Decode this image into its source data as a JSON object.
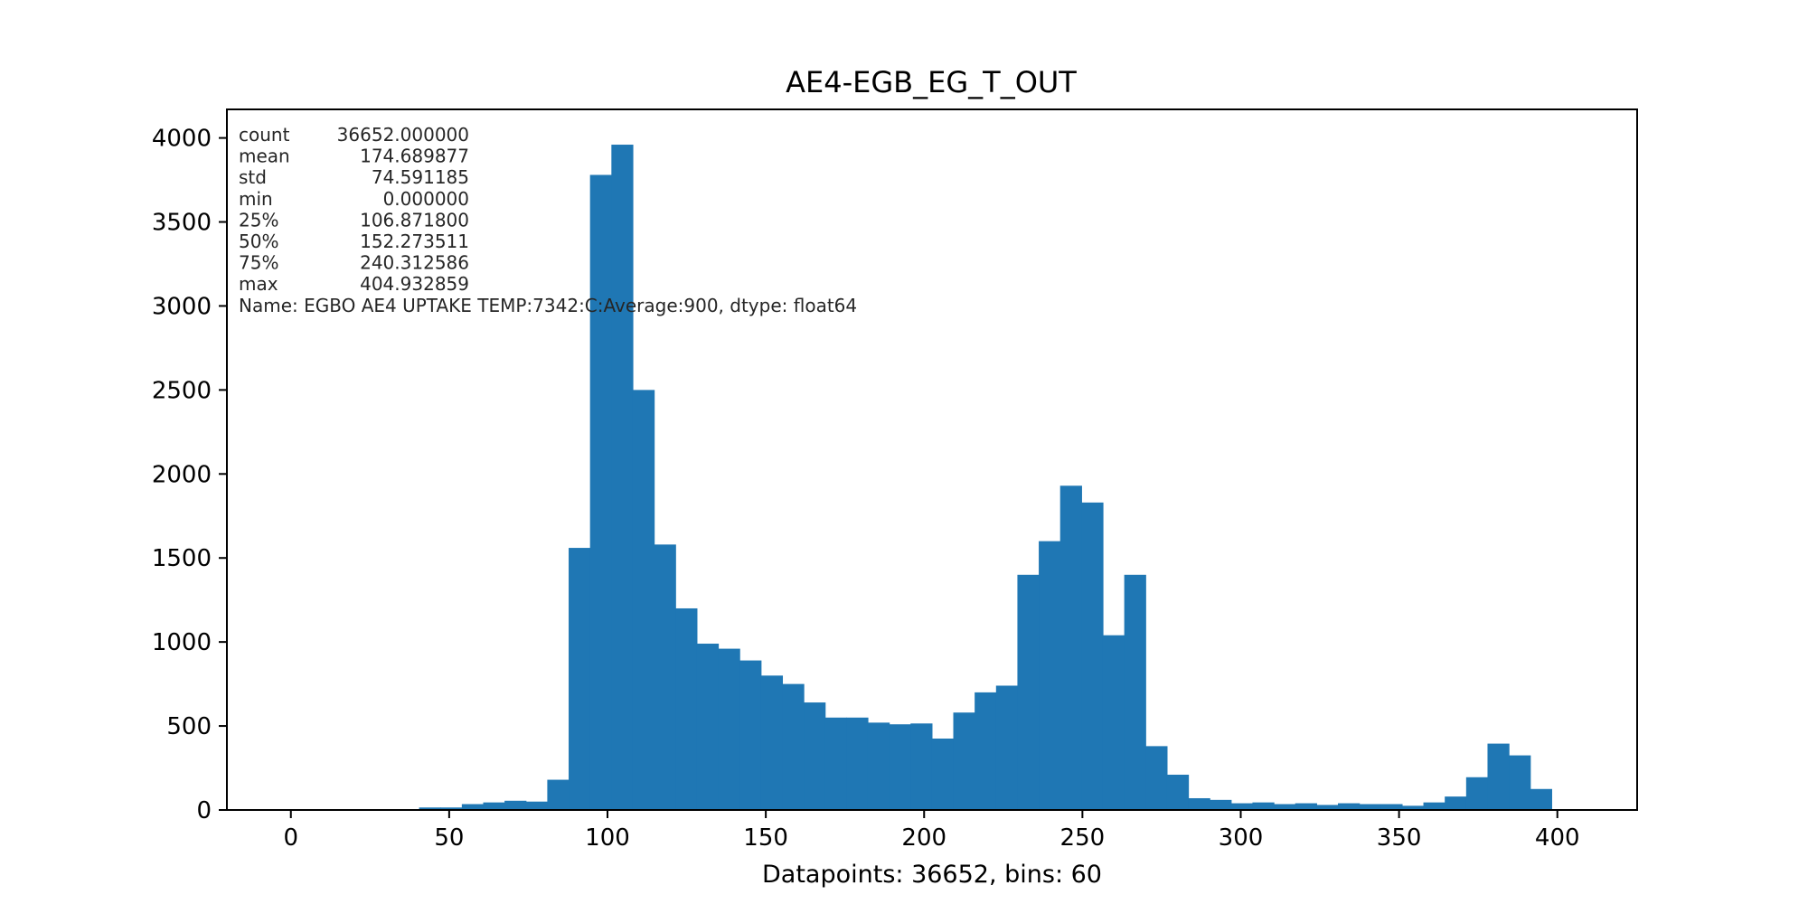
{
  "chart_data": {
    "type": "bar",
    "title": "AE4-EGB_EG_T_OUT",
    "xlabel": "Datapoints: 36652, bins: 60",
    "ylabel": "",
    "bar_color": "#1f77b4",
    "xlim": [
      -20.2,
      425.2
    ],
    "ylim": [
      0,
      4170
    ],
    "x_ticks": [
      0,
      50,
      100,
      150,
      200,
      250,
      300,
      350,
      400
    ],
    "y_ticks": [
      0,
      500,
      1000,
      1500,
      2000,
      2500,
      3000,
      3500,
      4000
    ],
    "bin_start": 0,
    "bin_width": 6.7489,
    "values": [
      0,
      0,
      0,
      0,
      0,
      0,
      15,
      15,
      35,
      45,
      55,
      50,
      180,
      1560,
      3780,
      3960,
      2500,
      1580,
      1200,
      990,
      960,
      890,
      800,
      750,
      640,
      550,
      550,
      520,
      510,
      515,
      425,
      580,
      700,
      740,
      1400,
      1600,
      1930,
      1830,
      1040,
      1400,
      380,
      210,
      70,
      60,
      40,
      45,
      35,
      40,
      30,
      40,
      35,
      35,
      25,
      45,
      80,
      195,
      395,
      325,
      125,
      0
    ],
    "stats_lines": [
      "count    36652.000000",
      "mean       174.689877",
      "std         74.591185",
      "min          0.000000",
      "25%        106.871800",
      "50%        152.273511",
      "75%        240.312586",
      "max        404.932859",
      "Name: EGBO AE4 UPTAKE TEMP:7342:C:Average:900, dtype: float64"
    ]
  }
}
